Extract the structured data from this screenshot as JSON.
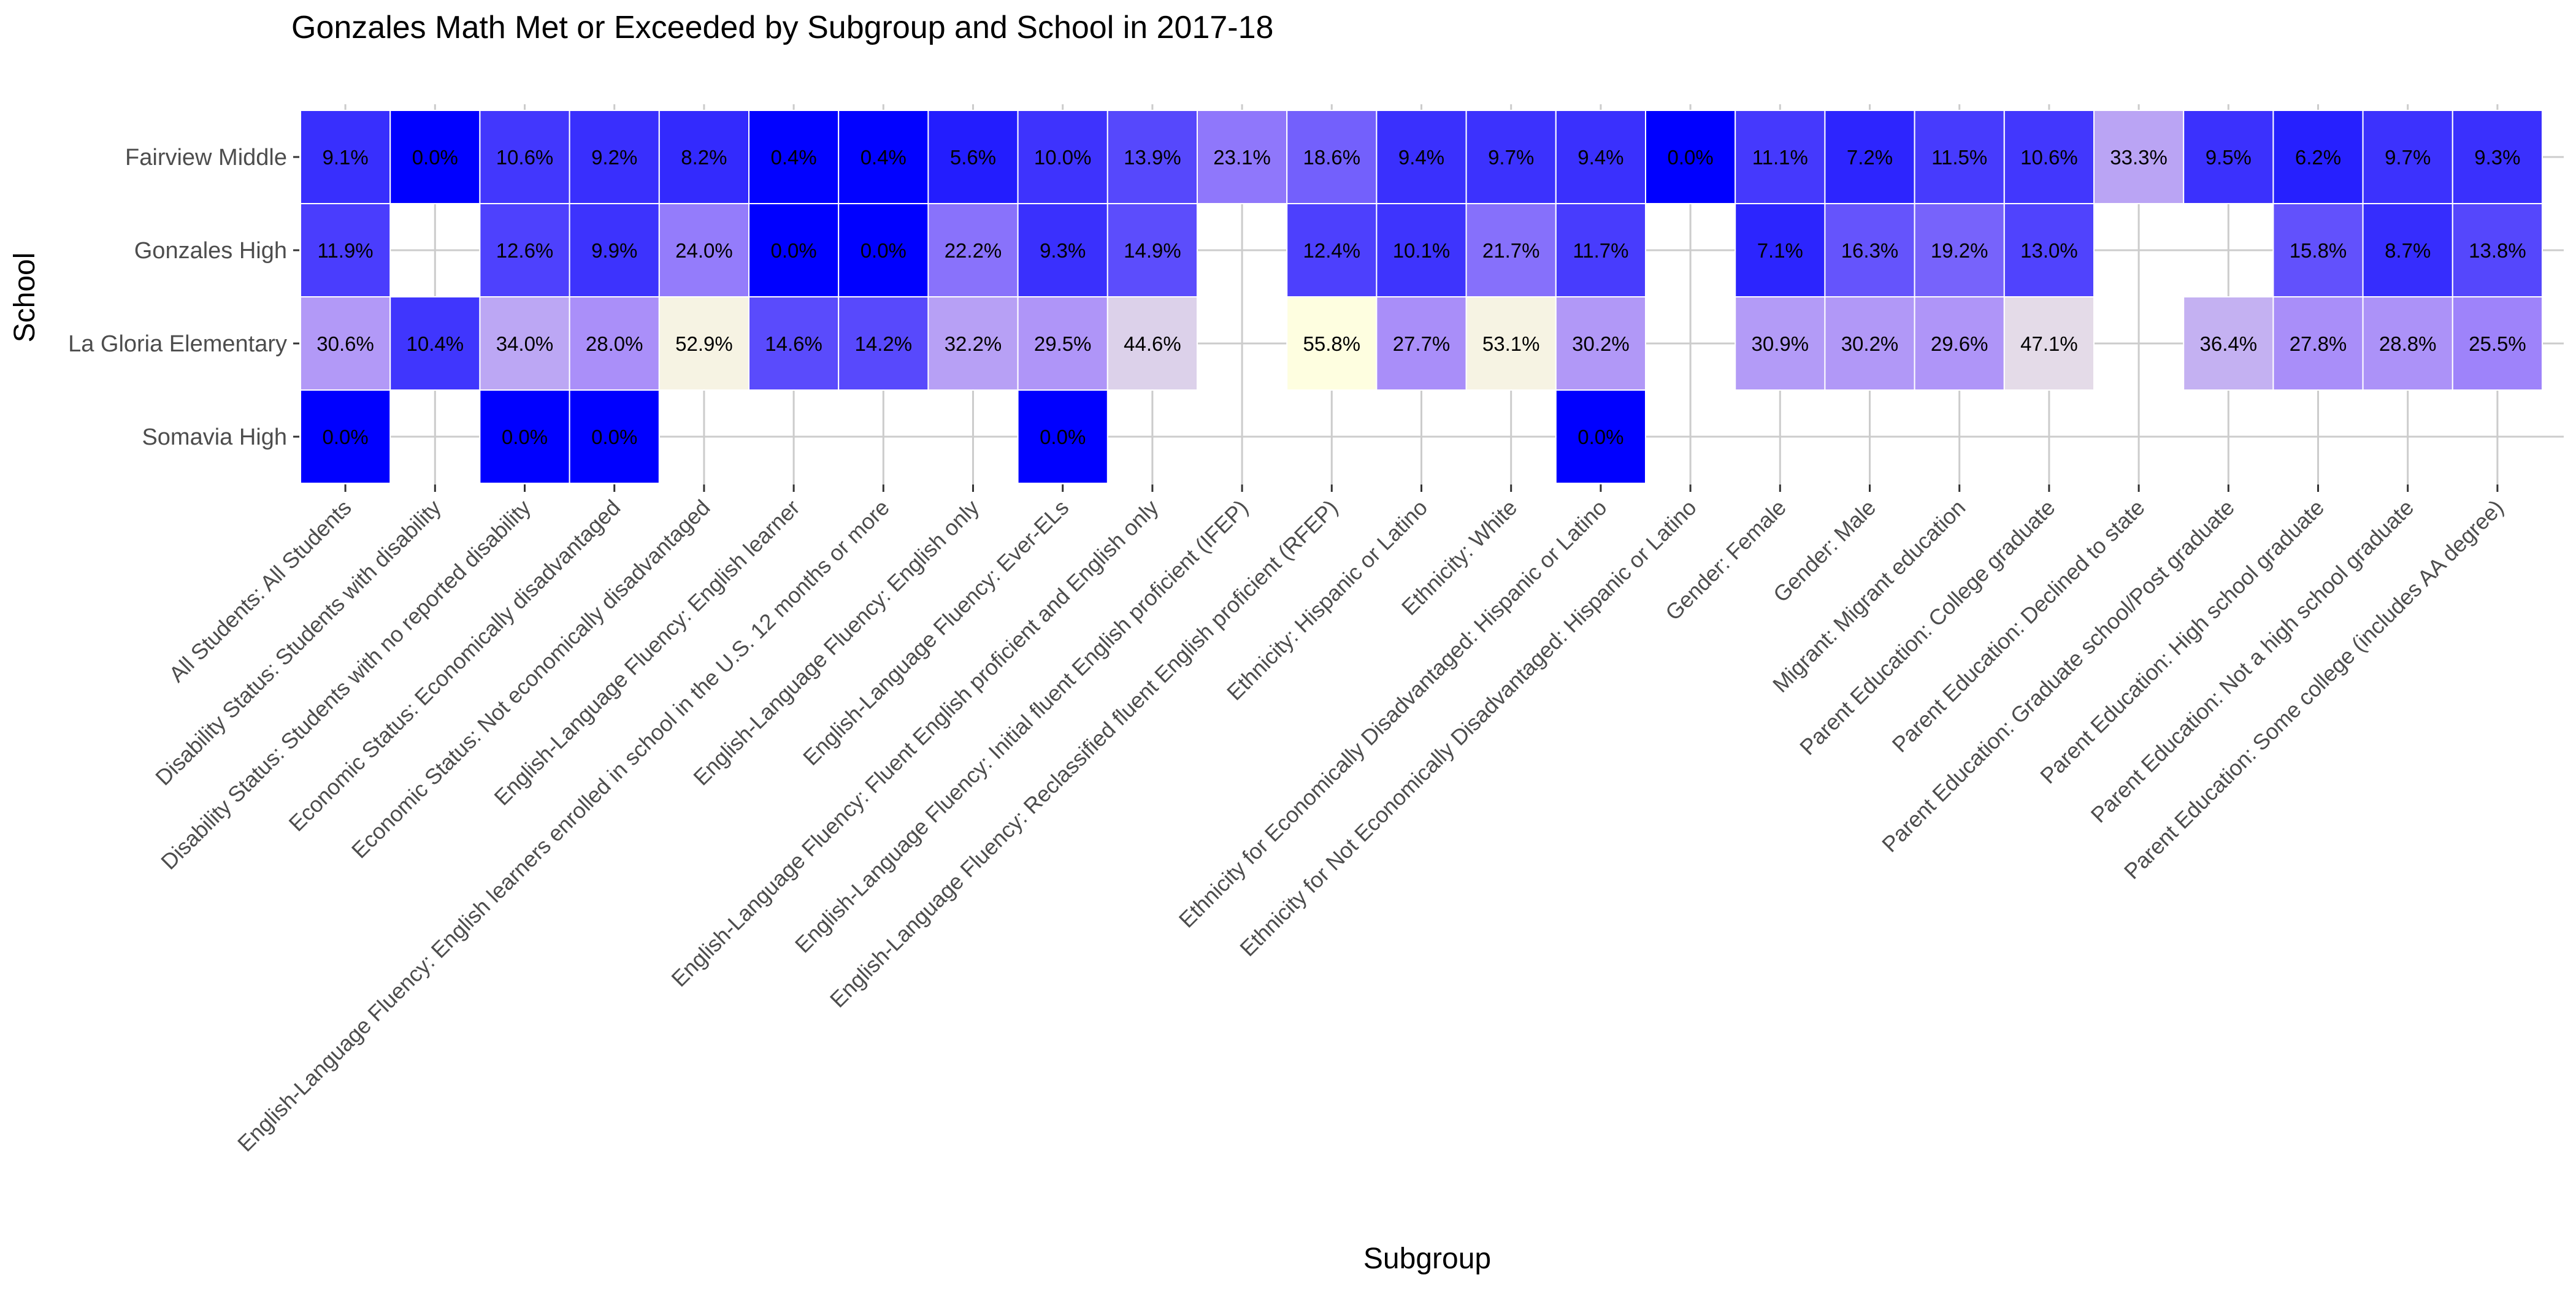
{
  "chart_data": {
    "type": "heatmap",
    "title": "Gonzales Math Met or Exceeded by Subgroup and School in 2017-18",
    "xlabel": "Subgroup",
    "ylabel": "School",
    "grid": true,
    "legend": "none",
    "color_scale": {
      "low": "#0000ff",
      "mid": "#a78bfa",
      "high": "#ffffe0",
      "domain": [
        0,
        27,
        56
      ]
    },
    "schools": [
      "Fairview Middle",
      "Gonzales High",
      "La Gloria Elementary",
      "Somavia High"
    ],
    "subgroups": [
      "All Students: All Students",
      "Disability Status: Students with disability",
      "Disability Status: Students with no reported disability",
      "Economic Status: Economically disadvantaged",
      "Economic Status: Not economically disadvantaged",
      "English-Language Fluency: English learner",
      "English-Language Fluency: English learners enrolled in school in the U.S. 12 months or more",
      "English-Language Fluency: English only",
      "English-Language Fluency: Ever-ELs",
      "English-Language Fluency: Fluent English proficient and English only",
      "English-Language Fluency: Initial fluent English proficient (IFEP)",
      "English-Language Fluency: Reclassified fluent English proficient (RFEP)",
      "Ethnicity: Hispanic or Latino",
      "Ethnicity: White",
      "Ethnicity for Economically Disadvantaged: Hispanic or Latino",
      "Ethnicity for Not Economically Disadvantaged: Hispanic or Latino",
      "Gender: Female",
      "Gender: Male",
      "Migrant: Migrant education",
      "Parent Education: College graduate",
      "Parent Education: Declined to state",
      "Parent Education: Graduate school/Post graduate",
      "Parent Education: High school graduate",
      "Parent Education: Not a high school graduate",
      "Parent Education: Some college (includes AA degree)"
    ],
    "values": [
      [
        9.1,
        0.0,
        10.6,
        9.2,
        8.2,
        0.4,
        0.4,
        5.6,
        10.0,
        13.9,
        23.1,
        18.6,
        9.4,
        9.7,
        9.4,
        0.0,
        11.1,
        7.2,
        11.5,
        10.6,
        33.3,
        9.5,
        6.2,
        9.7,
        9.3
      ],
      [
        11.9,
        null,
        12.6,
        9.9,
        24.0,
        0.0,
        0.0,
        22.2,
        9.3,
        14.9,
        null,
        12.4,
        10.1,
        21.7,
        11.7,
        null,
        7.1,
        16.3,
        19.2,
        13.0,
        null,
        null,
        15.8,
        8.7,
        13.8
      ],
      [
        30.6,
        10.4,
        34.0,
        28.0,
        52.9,
        14.6,
        14.2,
        32.2,
        29.5,
        44.6,
        null,
        55.8,
        27.7,
        53.1,
        30.2,
        null,
        30.9,
        30.2,
        29.6,
        47.1,
        null,
        36.4,
        27.8,
        28.8,
        25.5
      ],
      [
        0.0,
        null,
        0.0,
        0.0,
        null,
        null,
        null,
        null,
        0.0,
        null,
        null,
        null,
        null,
        null,
        0.0,
        null,
        null,
        null,
        null,
        null,
        null,
        null,
        null,
        null,
        null
      ]
    ],
    "value_suffix": "%"
  }
}
